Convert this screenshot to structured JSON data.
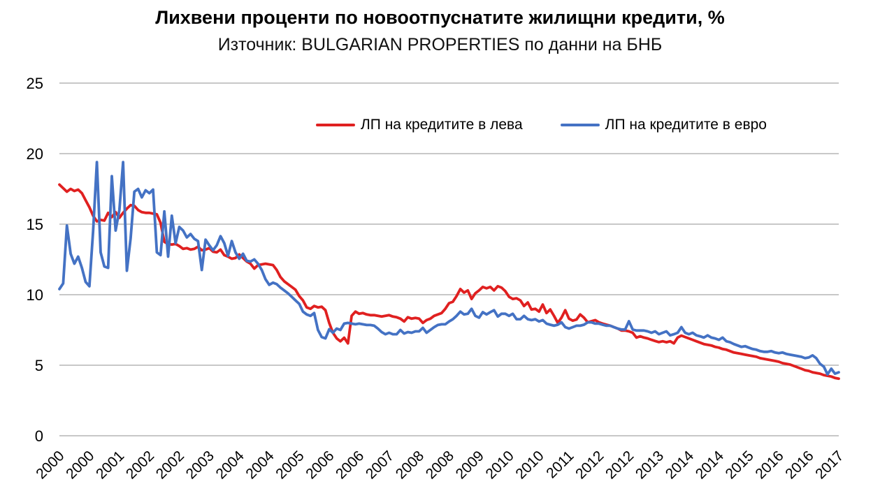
{
  "title": "Лихвени проценти по новоотпуснатите жилищни кредити, %",
  "subtitle": "Източник: BULGARIAN PROPERTIES по данни на БНБ",
  "legend": [
    {
      "label": "ЛП на кредитите в лева",
      "color": "#e02020"
    },
    {
      "label": "ЛП на кредитите в евро",
      "color": "#4472c4"
    }
  ],
  "colors": {
    "series_bgn": "#e02020",
    "series_eur": "#4472c4",
    "gridline": "#a6a6a6",
    "text": "#000000",
    "background": "#ffffff"
  },
  "chart_data": {
    "type": "line",
    "title": "Лихвени проценти по новоотпуснатите жилищни кредити, %",
    "subtitle": "Източник: BULGARIAN PROPERTIES по данни на БНБ",
    "x_unit": "month",
    "x_start": "2000-01",
    "x_end": "2017-05",
    "points_count": 209,
    "x_tick_every_months": 8,
    "x_tick_labels": [
      "2000",
      "2000",
      "2001",
      "2002",
      "2002",
      "2003",
      "2004",
      "2004",
      "2005",
      "2006",
      "2006",
      "2007",
      "2008",
      "2008",
      "2009",
      "2010",
      "2010",
      "2011",
      "2012",
      "2012",
      "2013",
      "2014",
      "2014",
      "2015",
      "2016",
      "2016",
      "2017"
    ],
    "y_ticks": [
      0,
      5,
      10,
      15,
      20,
      25
    ],
    "ylim": [
      0,
      25
    ],
    "grid": "horizontal",
    "legend_position": "top-inside",
    "series": [
      {
        "name": "ЛП на кредитите в лева",
        "color": "#e02020",
        "values": [
          17.8,
          17.55,
          17.3,
          17.5,
          17.35,
          17.45,
          17.2,
          16.7,
          16.2,
          15.6,
          15.2,
          15.3,
          15.25,
          15.8,
          15.5,
          15.85,
          15.45,
          15.8,
          16.1,
          16.35,
          16.3,
          16.0,
          15.85,
          15.8,
          15.8,
          15.75,
          15.7,
          15.1,
          13.75,
          13.6,
          13.55,
          13.6,
          13.45,
          13.25,
          13.3,
          13.2,
          13.25,
          13.4,
          13.15,
          13.2,
          13.3,
          13.05,
          13.0,
          13.2,
          12.8,
          12.7,
          12.55,
          12.6,
          12.85,
          12.6,
          12.35,
          12.2,
          11.85,
          12.1,
          12.15,
          12.2,
          12.15,
          12.1,
          11.75,
          11.25,
          10.95,
          10.75,
          10.55,
          10.35,
          9.9,
          9.6,
          9.1,
          9.0,
          9.2,
          9.1,
          9.15,
          8.9,
          8.0,
          7.3,
          6.9,
          6.7,
          6.95,
          6.55,
          8.5,
          8.8,
          8.65,
          8.7,
          8.6,
          8.55,
          8.55,
          8.5,
          8.45,
          8.5,
          8.55,
          8.45,
          8.4,
          8.3,
          8.1,
          8.4,
          8.3,
          8.35,
          8.3,
          8.0,
          8.2,
          8.3,
          8.5,
          8.6,
          8.7,
          9.0,
          9.4,
          9.5,
          9.9,
          10.4,
          10.15,
          10.3,
          9.7,
          10.1,
          10.3,
          10.55,
          10.45,
          10.55,
          10.3,
          10.6,
          10.5,
          10.25,
          9.85,
          9.7,
          9.75,
          9.6,
          9.2,
          9.45,
          8.95,
          9.0,
          8.8,
          9.3,
          8.7,
          8.95,
          8.5,
          8.0,
          8.37,
          8.9,
          8.3,
          8.16,
          8.24,
          8.6,
          8.37,
          8.04,
          8.12,
          8.2,
          8.04,
          7.95,
          7.87,
          7.8,
          7.7,
          7.6,
          7.46,
          7.46,
          7.4,
          7.3,
          6.96,
          7.05,
          6.96,
          6.9,
          6.8,
          6.72,
          6.64,
          6.7,
          6.63,
          6.7,
          6.55,
          6.96,
          7.1,
          7.0,
          6.9,
          6.8,
          6.7,
          6.6,
          6.5,
          6.45,
          6.4,
          6.3,
          6.25,
          6.15,
          6.1,
          6.0,
          5.9,
          5.85,
          5.8,
          5.75,
          5.7,
          5.65,
          5.6,
          5.5,
          5.45,
          5.4,
          5.35,
          5.3,
          5.25,
          5.15,
          5.1,
          5.05,
          4.95,
          4.85,
          4.75,
          4.65,
          4.6,
          4.5,
          4.45,
          4.4,
          4.3,
          4.25,
          4.2,
          4.1,
          4.05
        ]
      },
      {
        "name": "ЛП на кредитите в евро",
        "color": "#4472c4",
        "values": [
          10.4,
          10.8,
          14.9,
          12.9,
          12.2,
          12.7,
          11.9,
          10.9,
          10.6,
          14.5,
          19.4,
          13.0,
          12.0,
          11.9,
          18.4,
          14.55,
          16.0,
          19.4,
          11.7,
          14.0,
          17.3,
          17.5,
          16.9,
          17.4,
          17.2,
          17.45,
          13.0,
          12.8,
          15.9,
          12.7,
          15.6,
          13.65,
          14.8,
          14.55,
          14.06,
          14.3,
          13.96,
          13.8,
          11.75,
          13.9,
          13.5,
          13.15,
          13.5,
          14.15,
          13.65,
          12.75,
          13.8,
          13.0,
          12.55,
          12.9,
          12.4,
          12.35,
          12.5,
          12.2,
          11.75,
          11.1,
          10.7,
          10.85,
          10.75,
          10.5,
          10.3,
          10.1,
          9.85,
          9.6,
          9.35,
          8.8,
          8.6,
          8.5,
          8.7,
          7.5,
          7.0,
          6.9,
          7.55,
          7.3,
          7.6,
          7.5,
          7.95,
          8.0,
          7.95,
          7.9,
          7.95,
          7.9,
          7.85,
          7.85,
          7.8,
          7.6,
          7.35,
          7.2,
          7.3,
          7.2,
          7.2,
          7.5,
          7.25,
          7.35,
          7.3,
          7.4,
          7.4,
          7.65,
          7.3,
          7.5,
          7.7,
          7.85,
          7.9,
          7.9,
          8.1,
          8.26,
          8.5,
          8.8,
          8.6,
          8.65,
          9.0,
          8.5,
          8.37,
          8.76,
          8.6,
          8.76,
          8.9,
          8.45,
          8.65,
          8.65,
          8.5,
          8.65,
          8.26,
          8.26,
          8.5,
          8.26,
          8.2,
          8.26,
          8.1,
          8.2,
          7.95,
          7.87,
          7.8,
          7.87,
          8.04,
          7.7,
          7.6,
          7.7,
          7.8,
          7.8,
          7.87,
          8.04,
          8.04,
          7.95,
          7.95,
          7.87,
          7.8,
          7.8,
          7.7,
          7.6,
          7.53,
          7.53,
          8.12,
          7.53,
          7.46,
          7.46,
          7.46,
          7.4,
          7.3,
          7.4,
          7.2,
          7.3,
          7.4,
          7.12,
          7.2,
          7.3,
          7.7,
          7.3,
          7.2,
          7.3,
          7.12,
          7.05,
          6.96,
          7.12,
          6.96,
          6.9,
          6.8,
          6.96,
          6.7,
          6.63,
          6.5,
          6.4,
          6.3,
          6.35,
          6.25,
          6.15,
          6.1,
          6.0,
          5.95,
          5.95,
          6.0,
          5.9,
          5.85,
          5.9,
          5.8,
          5.75,
          5.7,
          5.65,
          5.6,
          5.5,
          5.55,
          5.7,
          5.5,
          5.1,
          4.9,
          4.35,
          4.75,
          4.4,
          4.5
        ]
      }
    ]
  }
}
